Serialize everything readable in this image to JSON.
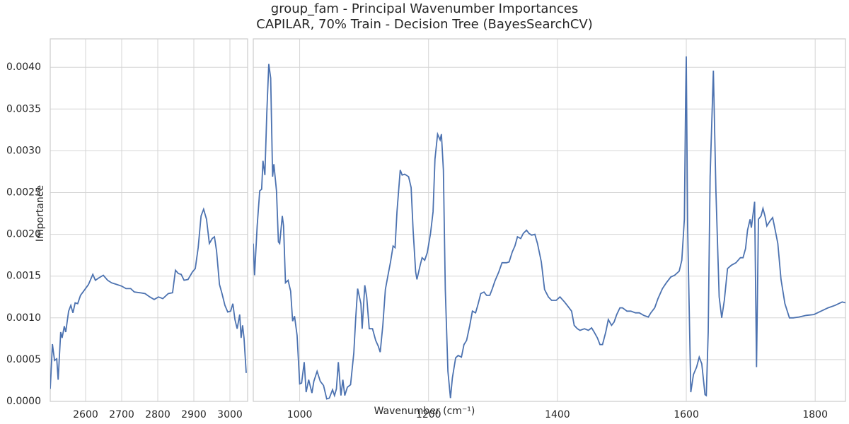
{
  "chart_data": [
    {
      "type": "line",
      "title": [
        "group_fam - Principal Wavenumber Importances",
        "CAPILAR, 70% Train - Decision Tree (BayesSearchCV)"
      ],
      "xlabel": "Wavenumber (cm⁻¹)",
      "ylabel": "Importance",
      "color": "#4c72b0",
      "grid": true,
      "xlim": [
        2502,
        3049
      ],
      "xticks": [
        2600,
        2700,
        2800,
        2900,
        3000
      ],
      "ylim": [
        0,
        0.00434
      ],
      "yticks": [
        {
          "value": 0,
          "label": "0.0000"
        },
        {
          "value": 0.0005,
          "label": "0.0005"
        },
        {
          "value": 0.001,
          "label": "0.0010"
        },
        {
          "value": 0.0015,
          "label": "0.0015"
        },
        {
          "value": 0.002,
          "label": "0.0020"
        },
        {
          "value": 0.0025,
          "label": "0.0025"
        },
        {
          "value": 0.003,
          "label": "0.0030"
        },
        {
          "value": 0.0035,
          "label": "0.0035"
        },
        {
          "value": 0.004,
          "label": "0.0040"
        }
      ],
      "x": [
        2502,
        2508,
        2514,
        2520,
        2524,
        2531,
        2535,
        2541,
        2545,
        2553,
        2559,
        2565,
        2571,
        2578,
        2586,
        2598,
        2608,
        2620,
        2627,
        2637,
        2649,
        2661,
        2672,
        2686,
        2700,
        2712,
        2725,
        2735,
        2751,
        2765,
        2778,
        2790,
        2802,
        2814,
        2829,
        2841,
        2849,
        2857,
        2865,
        2873,
        2884,
        2896,
        2904,
        2912,
        2920,
        2927,
        2935,
        2943,
        2951,
        2957,
        2963,
        2971,
        2978,
        2986,
        2994,
        3002,
        3008,
        3014,
        3020,
        3027,
        3031,
        3035,
        3039,
        3045
      ],
      "values": [
        0.00015,
        0.000685,
        0.00049,
        0.00051,
        0.00026,
        0.00083,
        0.00076,
        0.0009,
        0.00083,
        0.00108,
        0.00115,
        0.00106,
        0.00118,
        0.00117,
        0.00127,
        0.00134,
        0.0014,
        0.00152,
        0.00145,
        0.00148,
        0.00151,
        0.00145,
        0.00142,
        0.0014,
        0.00138,
        0.00135,
        0.00135,
        0.00131,
        0.0013,
        0.00129,
        0.00125,
        0.00122,
        0.00125,
        0.00123,
        0.00129,
        0.0013,
        0.00157,
        0.00153,
        0.00152,
        0.00145,
        0.00146,
        0.00155,
        0.00159,
        0.00184,
        0.00222,
        0.0023,
        0.00218,
        0.00189,
        0.00195,
        0.00197,
        0.0018,
        0.0014,
        0.00129,
        0.00115,
        0.00107,
        0.00108,
        0.00117,
        0.00098,
        0.00087,
        0.00104,
        0.00076,
        0.00091,
        0.00076,
        0.00034
      ]
    },
    {
      "type": "line",
      "color": "#4c72b0",
      "grid": true,
      "xlim": [
        928,
        1847
      ],
      "xticks": [
        1000,
        1200,
        1400,
        1600,
        1800
      ],
      "ylim": [
        0,
        0.00434
      ],
      "x": [
        928,
        930,
        934,
        938,
        941,
        943,
        946,
        949,
        952,
        955,
        958,
        960,
        964,
        967,
        969,
        973,
        975,
        978,
        982,
        986,
        989,
        992,
        996,
        1000,
        1003,
        1007,
        1010,
        1014,
        1019,
        1022,
        1027,
        1032,
        1037,
        1042,
        1046,
        1051,
        1054,
        1057,
        1060,
        1064,
        1067,
        1070,
        1074,
        1079,
        1084,
        1087,
        1090,
        1095,
        1097,
        1101,
        1104,
        1108,
        1113,
        1118,
        1122,
        1125,
        1129,
        1133,
        1137,
        1141,
        1145,
        1148,
        1151,
        1156,
        1159,
        1163,
        1169,
        1173,
        1176,
        1180,
        1182,
        1187,
        1190,
        1194,
        1198,
        1203,
        1207,
        1210,
        1214,
        1218,
        1220,
        1223,
        1226,
        1230,
        1234,
        1237,
        1242,
        1246,
        1251,
        1255,
        1259,
        1264,
        1268,
        1273,
        1277,
        1281,
        1286,
        1290,
        1295,
        1299,
        1303,
        1309,
        1314,
        1321,
        1325,
        1330,
        1334,
        1338,
        1343,
        1347,
        1352,
        1356,
        1360,
        1365,
        1369,
        1375,
        1380,
        1386,
        1391,
        1398,
        1404,
        1411,
        1416,
        1422,
        1426,
        1431,
        1435,
        1442,
        1448,
        1453,
        1457,
        1462,
        1466,
        1470,
        1475,
        1479,
        1484,
        1488,
        1492,
        1497,
        1501,
        1508,
        1514,
        1521,
        1527,
        1534,
        1541,
        1545,
        1551,
        1556,
        1563,
        1569,
        1576,
        1582,
        1589,
        1593,
        1597,
        1599,
        1600,
        1602,
        1607,
        1611,
        1616,
        1620,
        1624,
        1629,
        1631,
        1634,
        1637,
        1642,
        1646,
        1651,
        1655,
        1659,
        1664,
        1670,
        1677,
        1684,
        1688,
        1692,
        1695,
        1699,
        1701,
        1706,
        1709,
        1712,
        1716,
        1719,
        1722,
        1725,
        1730,
        1734,
        1738,
        1742,
        1747,
        1753,
        1760,
        1766,
        1775,
        1786,
        1798,
        1809,
        1820,
        1831,
        1842,
        1847
      ],
      "values": [
        0.00189,
        0.00151,
        0.0021,
        0.00252,
        0.00254,
        0.00288,
        0.00271,
        0.00345,
        0.00404,
        0.00387,
        0.00269,
        0.00284,
        0.00252,
        0.00191,
        0.00189,
        0.00222,
        0.0021,
        0.00142,
        0.00145,
        0.00132,
        0.00096,
        0.00102,
        0.00079,
        0.00021,
        0.00022,
        0.00047,
        0.00011,
        0.00026,
        0.0001,
        0.00024,
        0.00036,
        0.00024,
        0.00019,
        3e-05,
        4e-05,
        0.00014,
        7e-05,
        0.00015,
        0.00047,
        7e-05,
        0.00026,
        7e-05,
        0.00017,
        0.0002,
        0.00058,
        0.001,
        0.00135,
        0.00117,
        0.00087,
        0.00139,
        0.00125,
        0.00087,
        0.00087,
        0.00073,
        0.00066,
        0.00059,
        0.00091,
        0.00134,
        0.00151,
        0.00167,
        0.00186,
        0.00184,
        0.00227,
        0.00277,
        0.00271,
        0.00272,
        0.00269,
        0.00256,
        0.00205,
        0.00155,
        0.00146,
        0.00163,
        0.00172,
        0.00169,
        0.00178,
        0.00201,
        0.00227,
        0.0029,
        0.0032,
        0.00313,
        0.0032,
        0.00277,
        0.00134,
        0.00036,
        4e-05,
        0.00028,
        0.00052,
        0.00055,
        0.00053,
        0.00068,
        0.00073,
        0.00091,
        0.00108,
        0.00106,
        0.00117,
        0.00129,
        0.00131,
        0.00127,
        0.00127,
        0.00135,
        0.00144,
        0.00155,
        0.00166,
        0.00166,
        0.00167,
        0.00179,
        0.00186,
        0.00197,
        0.00195,
        0.00201,
        0.00205,
        0.00201,
        0.00199,
        0.002,
        0.00189,
        0.00167,
        0.00134,
        0.00125,
        0.00121,
        0.00121,
        0.00125,
        0.00119,
        0.00114,
        0.00108,
        0.00091,
        0.00087,
        0.00085,
        0.00087,
        0.00085,
        0.00088,
        0.00083,
        0.00076,
        0.00068,
        0.00068,
        0.00083,
        0.00098,
        0.00091,
        0.00095,
        0.00104,
        0.00112,
        0.00112,
        0.00108,
        0.00108,
        0.00106,
        0.00106,
        0.00103,
        0.00101,
        0.00106,
        0.00112,
        0.00123,
        0.00135,
        0.00142,
        0.00149,
        0.00151,
        0.00156,
        0.00169,
        0.00218,
        0.00362,
        0.00413,
        0.0021,
        0.00011,
        0.00032,
        0.00041,
        0.00053,
        0.00045,
        8e-05,
        7e-05,
        0.00083,
        0.00269,
        0.00396,
        0.00252,
        0.00125,
        0.001,
        0.00121,
        0.00159,
        0.00163,
        0.00166,
        0.00172,
        0.00172,
        0.00183,
        0.00205,
        0.00218,
        0.00208,
        0.00239,
        0.00041,
        0.00218,
        0.00222,
        0.00231,
        0.00222,
        0.0021,
        0.00216,
        0.0022,
        0.00205,
        0.00189,
        0.00146,
        0.00117,
        0.001,
        0.001,
        0.00101,
        0.00103,
        0.00104,
        0.00108,
        0.00112,
        0.00115,
        0.00119,
        0.00118
      ]
    }
  ]
}
